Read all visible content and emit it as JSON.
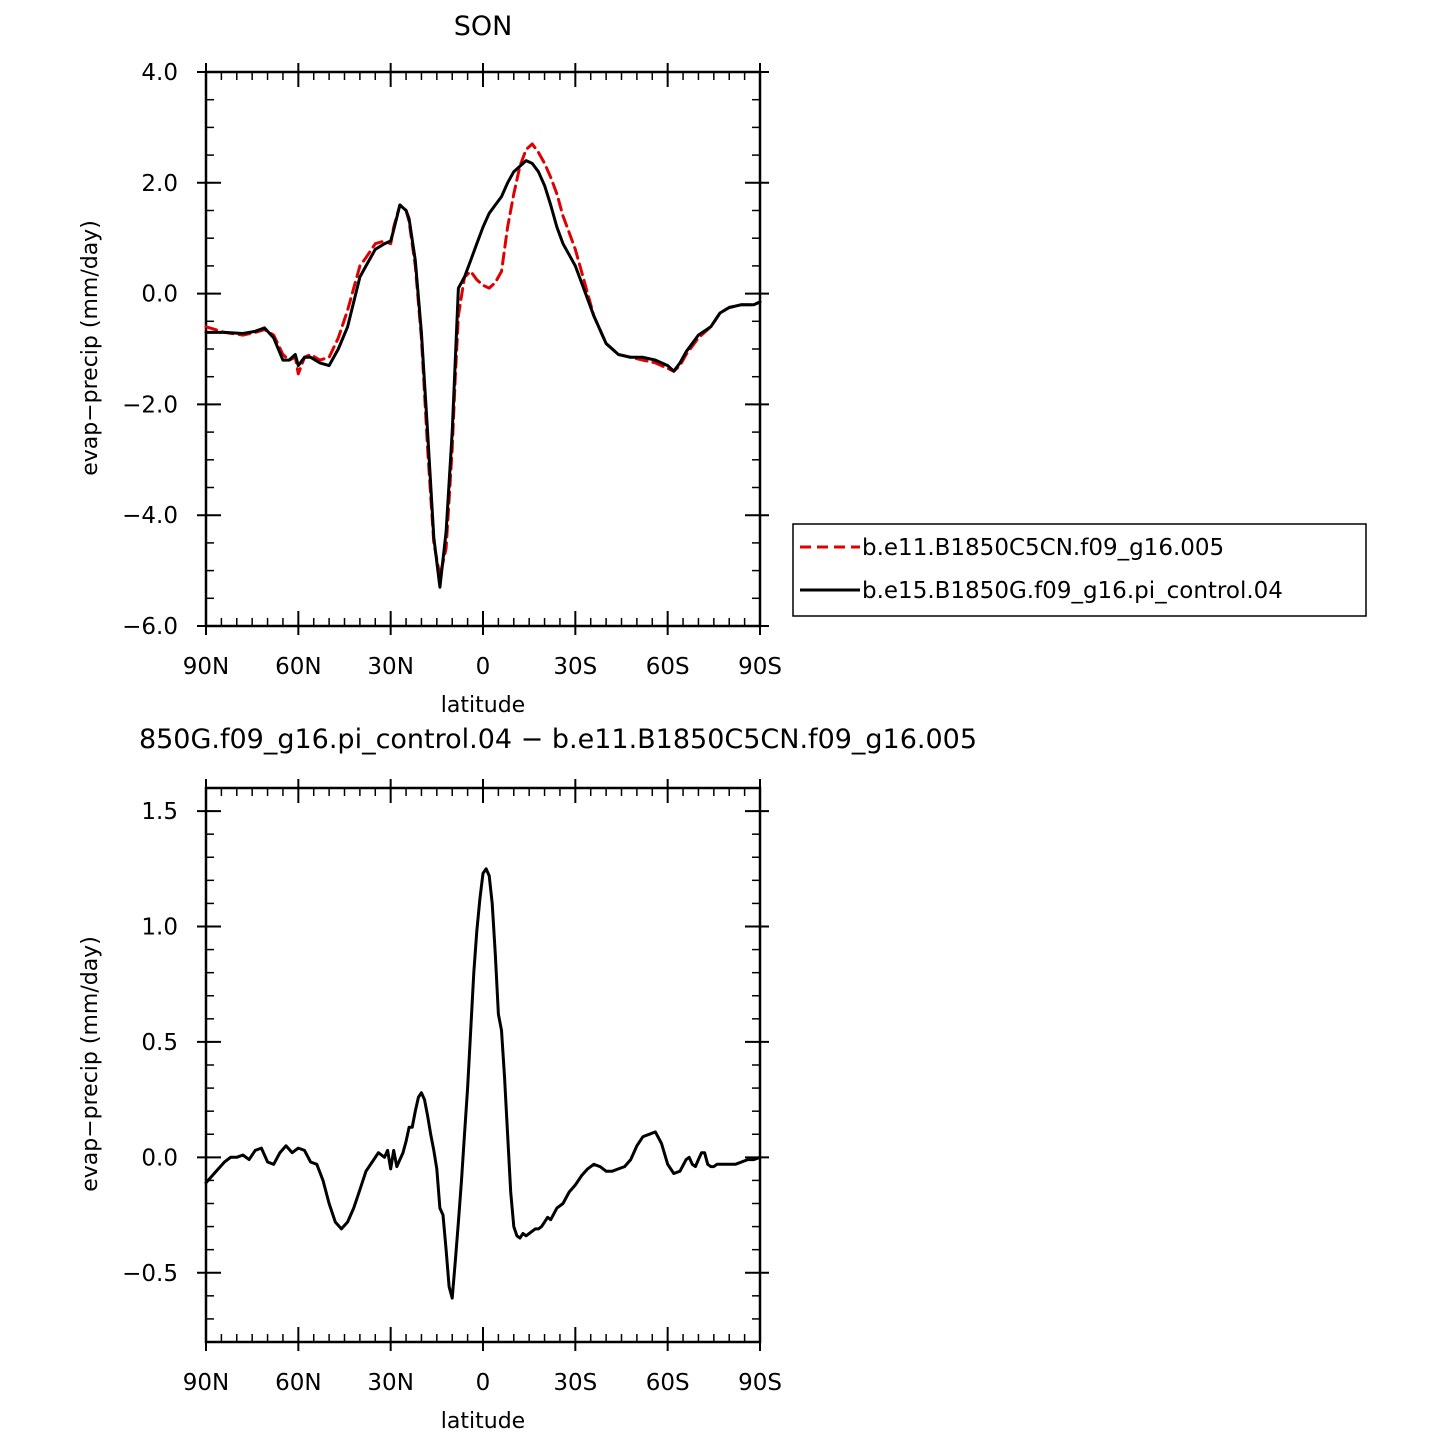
{
  "chart_data": [
    {
      "type": "line",
      "title": "SON",
      "xlabel": "latitude",
      "ylabel": "evap−precip (mm/day)",
      "xlim": [
        90,
        -90
      ],
      "ylim": [
        -6.0,
        4.0
      ],
      "x_ticks": [
        90,
        60,
        30,
        0,
        -30,
        -60,
        -90
      ],
      "x_tick_labels": [
        "90N",
        "60N",
        "30N",
        "0",
        "30S",
        "60S",
        "90S"
      ],
      "y_ticks": [
        4.0,
        2.0,
        0.0,
        -2.0,
        -4.0,
        -6.0
      ],
      "y_tick_labels": [
        "4.0",
        "2.0",
        "0.0",
        "−2.0",
        "−4.0",
        "−6.0"
      ],
      "grid": false,
      "legend_position": "right",
      "series": [
        {
          "name": "b.e11.B1850C5CN.f09_g16.005",
          "color": "#e00000",
          "dash": "dashed",
          "x": [
            90,
            84,
            78,
            74,
            71,
            68,
            65,
            63,
            61,
            60,
            58,
            56,
            53,
            50,
            47,
            44,
            40,
            38,
            35,
            32,
            30,
            29,
            27,
            25,
            24,
            22,
            20,
            18,
            16,
            14,
            12,
            10,
            9,
            8,
            6,
            4,
            2,
            0,
            -2,
            -4,
            -6,
            -8,
            -10,
            -12,
            -14,
            -16,
            -18,
            -20,
            -22,
            -24,
            -26,
            -28,
            -30,
            -33,
            -36,
            -40,
            -44,
            -48,
            -52,
            -56,
            -60,
            -62,
            -64,
            -66,
            -70,
            -74,
            -77,
            -80,
            -84,
            -88,
            -90
          ],
          "y": [
            -0.6,
            -0.7,
            -0.75,
            -0.7,
            -0.65,
            -0.75,
            -1.1,
            -1.2,
            -1.15,
            -1.45,
            -1.15,
            -1.1,
            -1.2,
            -1.15,
            -0.8,
            -0.3,
            0.5,
            0.65,
            0.9,
            0.95,
            0.9,
            1.2,
            1.6,
            1.5,
            1.3,
            0.5,
            -0.8,
            -2.8,
            -4.5,
            -5.1,
            -4.6,
            -2.8,
            -1.5,
            -0.4,
            0.3,
            0.4,
            0.25,
            0.15,
            0.1,
            0.2,
            0.4,
            1.2,
            1.8,
            2.3,
            2.6,
            2.7,
            2.55,
            2.35,
            2.1,
            1.8,
            1.4,
            1.1,
            0.8,
            0.2,
            -0.4,
            -0.9,
            -1.1,
            -1.15,
            -1.2,
            -1.25,
            -1.35,
            -1.4,
            -1.3,
            -1.1,
            -0.8,
            -0.6,
            -0.35,
            -0.25,
            -0.2,
            -0.2,
            -0.15
          ]
        },
        {
          "name": "b.e15.B1850G.f09_g16.pi_control.04",
          "color": "#000000",
          "dash": "solid",
          "x": [
            90,
            84,
            78,
            74,
            71,
            68,
            65,
            63,
            61,
            60,
            58,
            56,
            53,
            50,
            47,
            44,
            40,
            38,
            35,
            32,
            30,
            29,
            27,
            25,
            24,
            22,
            20,
            18,
            16,
            14,
            12,
            10,
            9,
            8,
            6,
            4,
            2,
            0,
            -2,
            -4,
            -6,
            -8,
            -10,
            -12,
            -14,
            -16,
            -18,
            -20,
            -22,
            -24,
            -26,
            -28,
            -30,
            -33,
            -36,
            -40,
            -44,
            -48,
            -52,
            -56,
            -60,
            -62,
            -64,
            -66,
            -70,
            -74,
            -77,
            -80,
            -84,
            -88,
            -90
          ],
          "y": [
            -0.7,
            -0.7,
            -0.72,
            -0.68,
            -0.62,
            -0.8,
            -1.2,
            -1.2,
            -1.1,
            -1.3,
            -1.15,
            -1.15,
            -1.25,
            -1.3,
            -1.0,
            -0.6,
            0.3,
            0.5,
            0.8,
            0.9,
            0.95,
            1.15,
            1.6,
            1.5,
            1.35,
            0.6,
            -0.7,
            -2.5,
            -4.4,
            -5.3,
            -4.3,
            -2.5,
            -1.2,
            0.1,
            0.3,
            0.6,
            0.9,
            1.2,
            1.45,
            1.6,
            1.75,
            2.0,
            2.2,
            2.3,
            2.4,
            2.35,
            2.2,
            1.95,
            1.6,
            1.2,
            0.9,
            0.7,
            0.5,
            0.05,
            -0.4,
            -0.9,
            -1.1,
            -1.15,
            -1.15,
            -1.2,
            -1.3,
            -1.4,
            -1.25,
            -1.05,
            -0.75,
            -0.6,
            -0.35,
            -0.25,
            -0.2,
            -0.2,
            -0.15
          ]
        }
      ]
    },
    {
      "type": "line",
      "title": "850G.f09_g16.pi_control.04 − b.e11.B1850C5CN.f09_g16.005",
      "xlabel": "latitude",
      "ylabel": "evap−precip (mm/day)",
      "xlim": [
        90,
        -90
      ],
      "ylim": [
        -0.8,
        1.6
      ],
      "x_ticks": [
        90,
        60,
        30,
        0,
        -30,
        -60,
        -90
      ],
      "x_tick_labels": [
        "90N",
        "60N",
        "30N",
        "0",
        "30S",
        "60S",
        "90S"
      ],
      "y_ticks": [
        1.5,
        1.0,
        0.5,
        0.0,
        -0.5
      ],
      "y_tick_labels": [
        "1.5",
        "1.0",
        "0.5",
        "0.0",
        "−0.5"
      ],
      "grid": false,
      "series": [
        {
          "color": "#000000",
          "dash": "solid",
          "x": [
            90,
            88,
            86,
            84,
            82,
            80,
            78,
            76,
            74,
            72,
            70,
            68,
            66,
            64,
            62,
            60,
            58,
            56,
            54,
            52,
            50,
            48,
            46,
            44,
            42,
            40,
            38,
            36,
            34,
            32,
            31,
            30,
            29,
            28,
            27,
            26,
            25,
            24,
            23,
            22,
            21,
            20,
            19,
            18,
            17,
            16,
            15,
            14,
            13,
            12,
            11,
            10,
            9,
            8,
            7,
            6,
            5,
            4,
            3,
            2,
            1,
            0,
            -1,
            -2,
            -3,
            -4,
            -5,
            -6,
            -7,
            -8,
            -9,
            -10,
            -11,
            -12,
            -13,
            -14,
            -15,
            -16,
            -17,
            -18,
            -19,
            -20,
            -21,
            -22,
            -24,
            -26,
            -28,
            -30,
            -32,
            -34,
            -36,
            -38,
            -40,
            -42,
            -44,
            -46,
            -48,
            -50,
            -52,
            -54,
            -56,
            -58,
            -60,
            -62,
            -64,
            -66,
            -67,
            -68,
            -69,
            -70,
            -71,
            -72,
            -73,
            -74,
            -75,
            -76,
            -78,
            -80,
            -82,
            -84,
            -86,
            -88,
            -90
          ],
          "y": [
            -0.11,
            -0.08,
            -0.05,
            -0.02,
            0.0,
            0.0,
            0.01,
            -0.01,
            0.03,
            0.04,
            -0.02,
            -0.03,
            0.02,
            0.05,
            0.02,
            0.04,
            0.03,
            -0.02,
            -0.03,
            -0.1,
            -0.2,
            -0.28,
            -0.31,
            -0.28,
            -0.22,
            -0.14,
            -0.06,
            -0.02,
            0.02,
            0.0,
            0.03,
            -0.05,
            0.03,
            -0.04,
            -0.01,
            0.02,
            0.07,
            0.13,
            0.13,
            0.2,
            0.26,
            0.28,
            0.25,
            0.18,
            0.1,
            0.03,
            -0.05,
            -0.22,
            -0.25,
            -0.4,
            -0.56,
            -0.61,
            -0.45,
            -0.28,
            -0.1,
            0.1,
            0.3,
            0.55,
            0.8,
            0.98,
            1.12,
            1.23,
            1.25,
            1.22,
            1.1,
            0.88,
            0.62,
            0.55,
            0.35,
            0.1,
            -0.15,
            -0.3,
            -0.34,
            -0.35,
            -0.33,
            -0.34,
            -0.33,
            -0.32,
            -0.31,
            -0.31,
            -0.3,
            -0.28,
            -0.26,
            -0.27,
            -0.22,
            -0.2,
            -0.15,
            -0.12,
            -0.08,
            -0.05,
            -0.03,
            -0.04,
            -0.06,
            -0.06,
            -0.05,
            -0.04,
            -0.01,
            0.05,
            0.09,
            0.1,
            0.11,
            0.06,
            -0.03,
            -0.07,
            -0.06,
            -0.01,
            0.0,
            -0.03,
            -0.04,
            -0.01,
            0.02,
            0.02,
            -0.03,
            -0.04,
            -0.04,
            -0.03,
            -0.03,
            -0.03,
            -0.03,
            -0.02,
            -0.01,
            -0.01,
            0.0
          ]
        }
      ]
    }
  ]
}
